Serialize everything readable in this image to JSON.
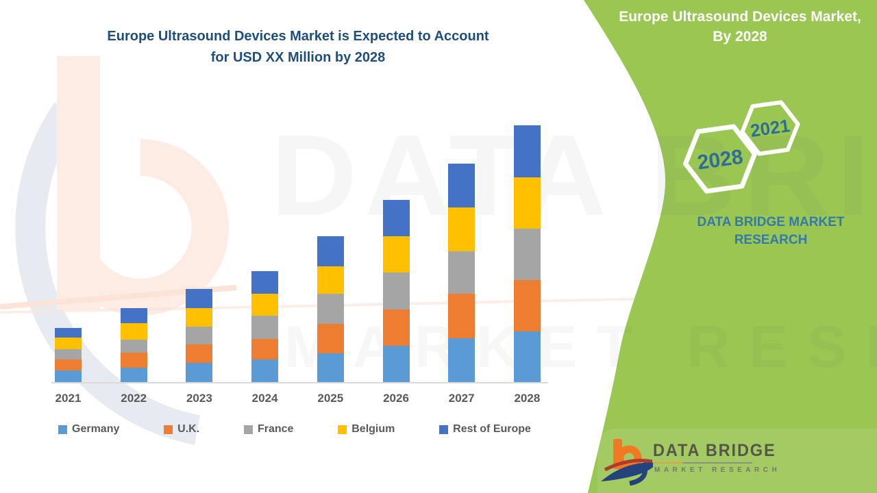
{
  "page": {
    "background": "#ffffff",
    "accent_green": "#9ac652"
  },
  "main_title": {
    "line1": "Europe Ultrasound Devices Market is Expected to Account",
    "line2": "for USD XX Million by 2028"
  },
  "side_panel": {
    "heading_line1": "Europe Ultrasound Devices Market,",
    "heading_line2": "By 2028",
    "hexagons": [
      {
        "year": "2021"
      },
      {
        "year": "2028"
      }
    ],
    "brand_text_line1": "DATA BRIDGE MARKET",
    "brand_text_line2": "RESEARCH",
    "text_color": "#3579a9"
  },
  "logo": {
    "name": "DATA BRIDGE",
    "tagline": "MARKET RESEARCH"
  },
  "watermark": {
    "line1": "DATA BRIDGE",
    "line2": "MARKET RESEARCH"
  },
  "chart_data": {
    "type": "bar",
    "stacked": true,
    "title": "Europe Ultrasound Devices Market is Expected to Account for USD XX Million by 2028",
    "categories": [
      "2021",
      "2022",
      "2023",
      "2024",
      "2025",
      "2026",
      "2027",
      "2028"
    ],
    "series": [
      {
        "name": "Germany",
        "color": "#5B9BD5",
        "values": [
          17,
          21,
          28,
          33,
          42,
          53,
          64,
          74
        ]
      },
      {
        "name": "U.K.",
        "color": "#ED7D31",
        "values": [
          16,
          22,
          27,
          30,
          43,
          53,
          65,
          75
        ]
      },
      {
        "name": "France",
        "color": "#A5A5A5",
        "values": [
          15,
          19,
          26,
          34,
          44,
          54,
          62,
          75
        ]
      },
      {
        "name": "Belgium",
        "color": "#FFC000",
        "values": [
          17,
          24,
          27,
          32,
          40,
          53,
          64,
          75
        ]
      },
      {
        "name": "Rest of Europe",
        "color": "#4472C4",
        "values": [
          14,
          22,
          28,
          33,
          44,
          53,
          64,
          76
        ]
      }
    ],
    "value_axis": {
      "visible": false,
      "note": "No numeric axis shown; values are relative stacked heights (USD XX Million placeholder)"
    },
    "xlabel": "",
    "ylabel": "",
    "legend_position": "bottom",
    "gridlines": false
  }
}
